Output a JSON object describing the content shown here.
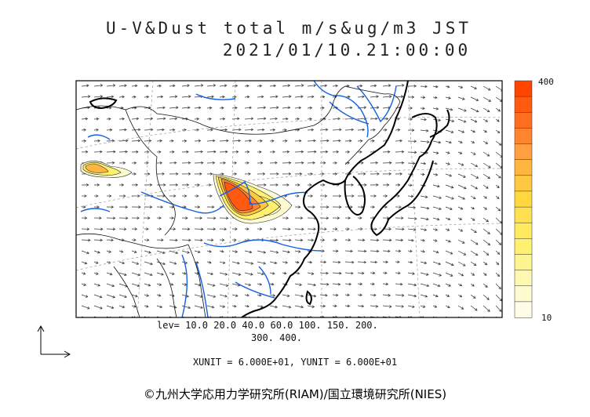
{
  "title_line1": "U-V&Dust total m/s&ug/m3 JST",
  "title_line2": "2021/01/10.21:00:00",
  "colorbar": {
    "max_label": "400",
    "min_label": "10",
    "colors": [
      "#ff4500",
      "#ff5a10",
      "#ff6e20",
      "#ff8430",
      "#ffa040",
      "#ffb640",
      "#ffc840",
      "#ffd840",
      "#ffe050",
      "#ffea60",
      "#fff070",
      "#fff590",
      "#fff8b0",
      "#fffbd0",
      "#fffde8"
    ]
  },
  "contour_levels_line1": "lev= 10.0 20.0 40.0 60.0 100. 150. 200.",
  "contour_levels_line2": "300. 400.",
  "units_text": "XUNIT = 6.000E+01, YUNIT = 6.000E+01",
  "credit": "©九州大学応用力学研究所(RIAM)/国立環境研究所(NIES)",
  "colors": {
    "rivers": "#1560e0",
    "coast": "#000000",
    "wind": "#333333"
  }
}
